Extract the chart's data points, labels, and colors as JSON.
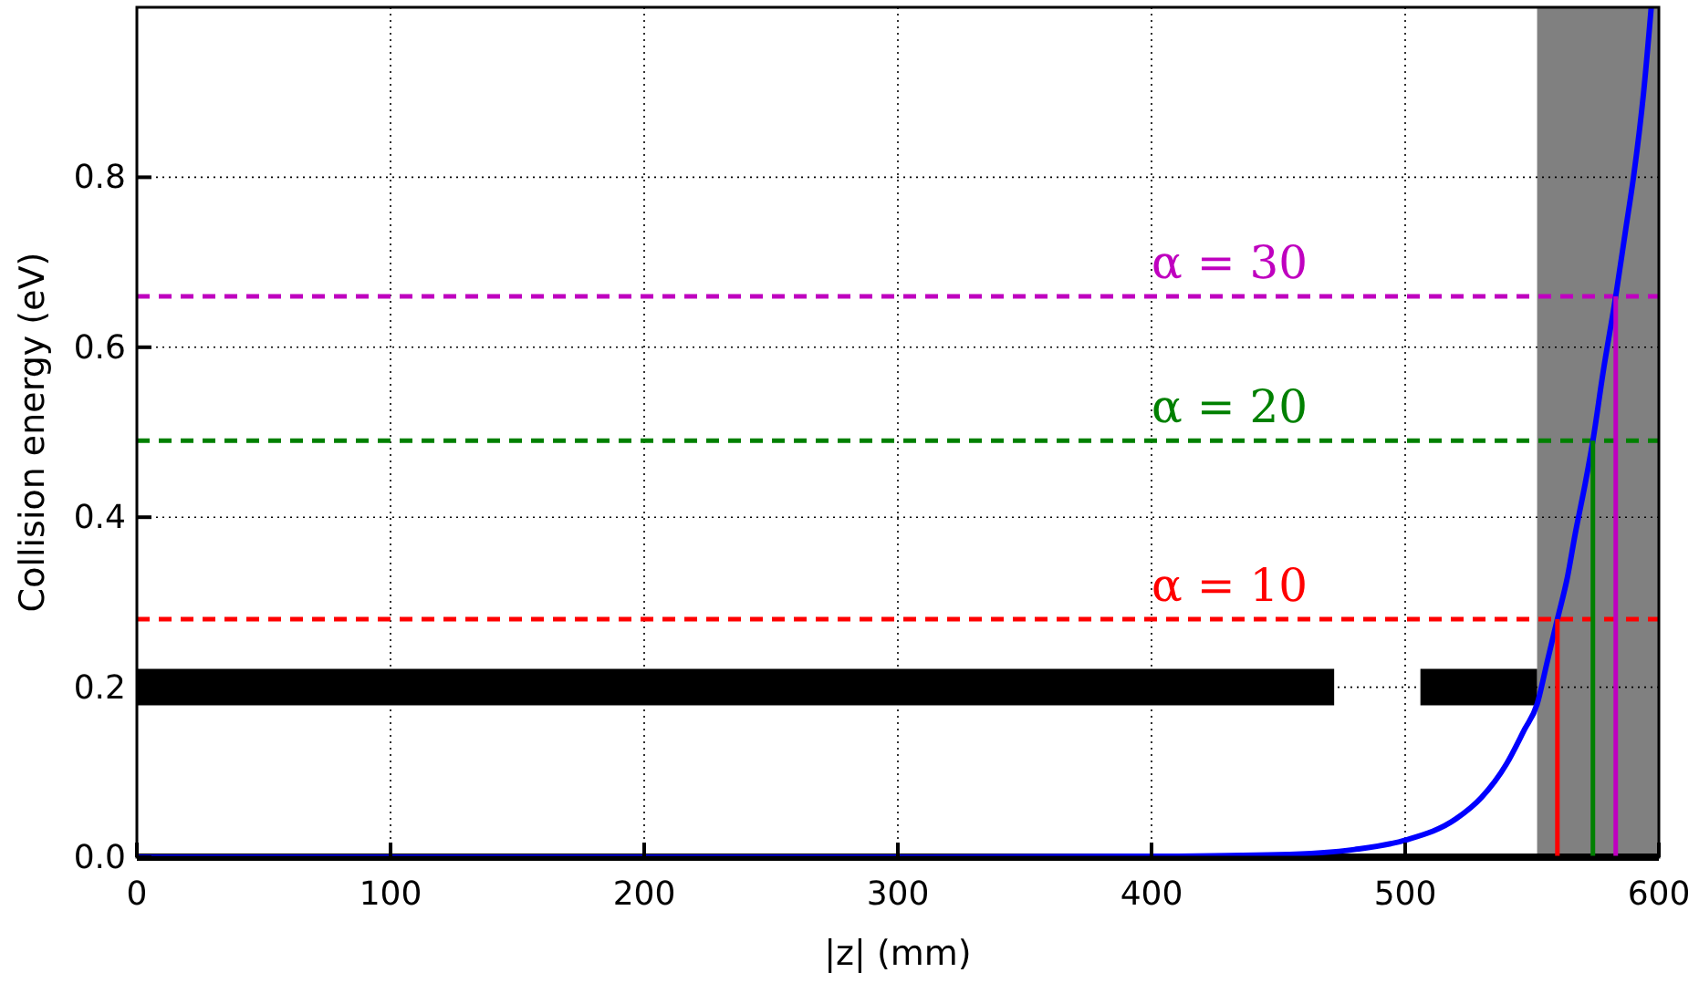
{
  "chart_data": {
    "type": "line",
    "xlabel": "|z| (mm)",
    "ylabel": "Collision energy (eV)",
    "xlim": [
      0,
      600
    ],
    "xticks": [
      0,
      100,
      200,
      300,
      400,
      500,
      600
    ],
    "ylim": [
      0,
      1
    ],
    "yticks": [
      {
        "value": 0,
        "label": "0.0"
      },
      0.2,
      0.4,
      0.6,
      0.8
    ],
    "annotations": [
      "α = 10",
      "α = 20",
      "α = 30"
    ],
    "grid": true,
    "line_style": "solid",
    "marker": "none",
    "series": [
      {
        "color": "#000000",
        "x": [
          0,
          472,
          489,
          506,
          552
        ],
        "values": [
          0.2,
          0.2,
          null,
          0.2,
          0.2
        ]
      },
      {
        "color": "#0000ff",
        "x": [
          0,
          300,
          400,
          450,
          480,
          500,
          520,
          530,
          540,
          547,
          552,
          556,
          560,
          564,
          567,
          571,
          574,
          578,
          583,
          587,
          590,
          594,
          597
        ],
        "values": [
          0,
          0,
          0.001,
          0.003,
          0.009,
          0.02,
          0.045,
          0.07,
          0.11,
          0.15,
          0.18,
          0.23,
          0.28,
          0.33,
          0.38,
          0.44,
          0.49,
          0.57,
          0.66,
          0.74,
          0.8,
          0.9,
          1.0
        ]
      },
      {
        "color": "#ff0000",
        "x": [
          560,
          560
        ],
        "values": [
          0,
          0.28
        ]
      },
      {
        "color": "#008000",
        "x": [
          574,
          574
        ],
        "values": [
          0,
          0.49
        ]
      },
      {
        "color": "#bf00bf",
        "x": [
          583,
          583
        ],
        "values": [
          0,
          0.66
        ]
      }
    ],
    "ref_lines": [
      {
        "axis": "y",
        "value": 0,
        "color": "#000000",
        "line_style": "solid"
      },
      {
        "axis": "y",
        "value": 0.28,
        "color": "#ff0000",
        "line_style": "dashed"
      },
      {
        "axis": "y",
        "value": 0.49,
        "color": "#008000",
        "line_style": "dashed"
      },
      {
        "axis": "y",
        "value": 0.66,
        "color": "#bf00bf",
        "line_style": "dashed"
      }
    ],
    "bands": [
      {
        "axis": "x",
        "from": 552,
        "to": 600,
        "color": "#808080"
      }
    ]
  }
}
